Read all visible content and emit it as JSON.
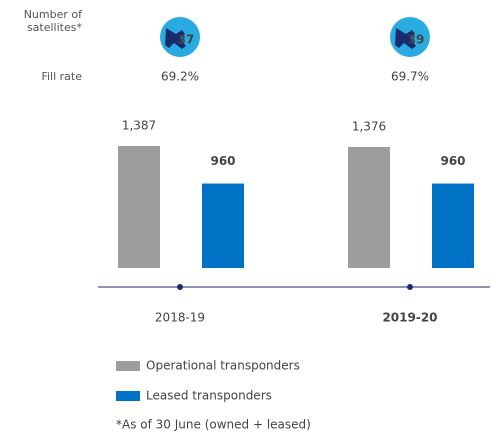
{
  "labels": {
    "satellites": "Number of satellites*",
    "fill_rate": "Fill rate"
  },
  "chart_data": {
    "type": "bar",
    "categories": [
      "2018-19",
      "2019-20"
    ],
    "satellites": [
      37,
      39
    ],
    "fill_rate": {
      "values": [
        69.2,
        69.7
      ],
      "value_labels": [
        "69.2%",
        "69.7%"
      ]
    },
    "series": [
      {
        "name": "Operational transponders",
        "color": "#9d9d9c",
        "values": [
          1387,
          1376
        ],
        "value_labels": [
          "1,387",
          "1,376"
        ]
      },
      {
        "name": "Leased transponders",
        "color": "#0072c6",
        "values": [
          960,
          960
        ]
      }
    ],
    "footnote": "*As of 30 June (owned + leased)"
  }
}
